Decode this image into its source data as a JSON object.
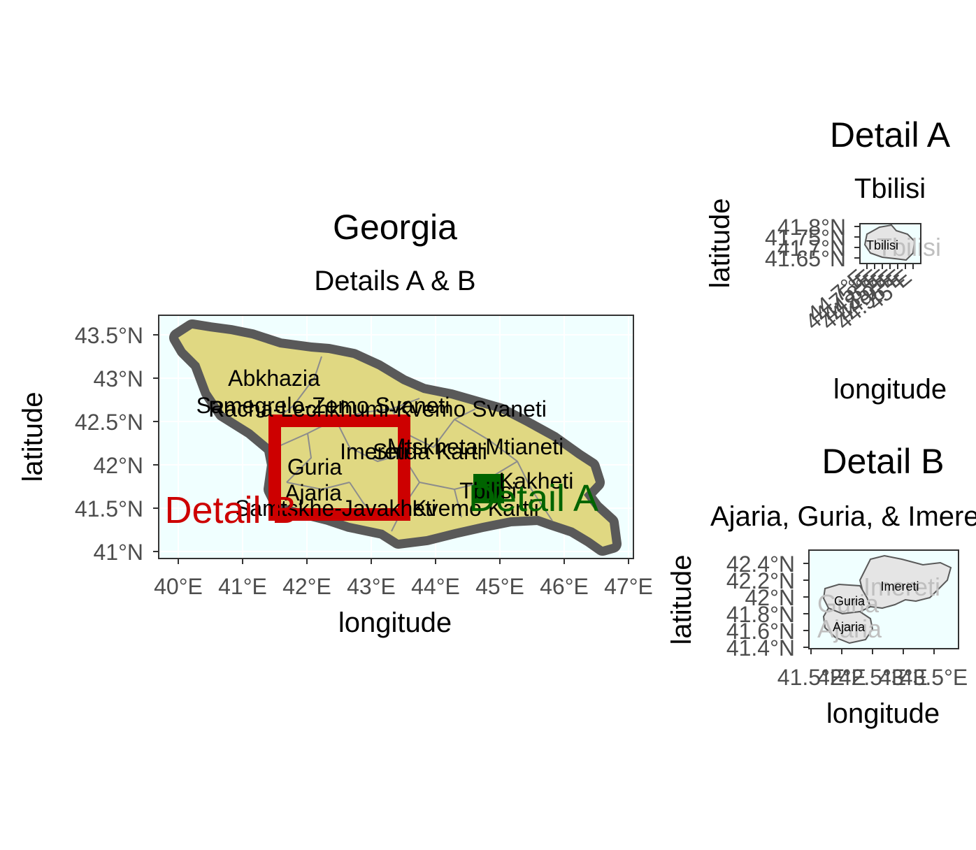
{
  "main_map": {
    "title": "Georgia",
    "subtitle": "Details A & B",
    "xlabel": "longitude",
    "ylabel": "latitude",
    "x_ticks": [
      "40°E",
      "41°E",
      "42°E",
      "43°E",
      "44°E",
      "45°E",
      "46°E",
      "47°E"
    ],
    "y_ticks": [
      "41°N",
      "41.5°N",
      "42°N",
      "42.5°N",
      "43°N",
      "43.5°N"
    ],
    "region_labels": [
      "Abkhazia",
      "Samegrelo-Zemo Svaneti",
      "Racha-Lechkhumi-Kvemo Svaneti",
      "Imereti",
      "Shida Kartli",
      "Mtskheta-Mtianeti",
      "Guria",
      "Ajaria",
      "Samtskhe-Javakheti",
      "Kvemo Kartli",
      "Tbilisi",
      "Kakheti"
    ],
    "detail_a_label": "Detail A",
    "detail_b_label": "Detail B"
  },
  "inset_a": {
    "title": "Detail A",
    "subtitle": "Tbilisi",
    "xlabel": "longitude",
    "ylabel": "latitude",
    "y_ticks": [
      "41.8°N",
      "41.75°N",
      "41.7°N",
      "41.65°N"
    ],
    "x_ticks": [
      "44.7°E",
      "44.75°E",
      "44.8°E",
      "44.85°E",
      "44.9°E",
      "44.95°E",
      "45°E"
    ],
    "region_label": "Tbilisi",
    "ghost_label": "Tbilisi"
  },
  "inset_b": {
    "title": "Detail B",
    "subtitle": "Ajaria, Guria, & Imereti",
    "xlabel": "longitude",
    "ylabel": "latitude",
    "y_ticks": [
      "42.4°N",
      "42.2°N",
      "42°N",
      "41.8°N",
      "41.6°N",
      "41.4°N"
    ],
    "x_ticks": [
      "41.5°E",
      "42°E",
      "42.5°E",
      "43°E",
      "43.5°E"
    ],
    "region_labels": [
      "Imereti",
      "Guria",
      "Ajaria"
    ],
    "ghost_labels": [
      "Imereti",
      "Guria",
      "Ajaria"
    ]
  },
  "colors": {
    "land": "#e0d882",
    "sea": "#f0ffff",
    "border_halo": "#595959",
    "detail_a": "#006400",
    "detail_b": "#cd0000",
    "inset_land": "#e5e5e5"
  }
}
